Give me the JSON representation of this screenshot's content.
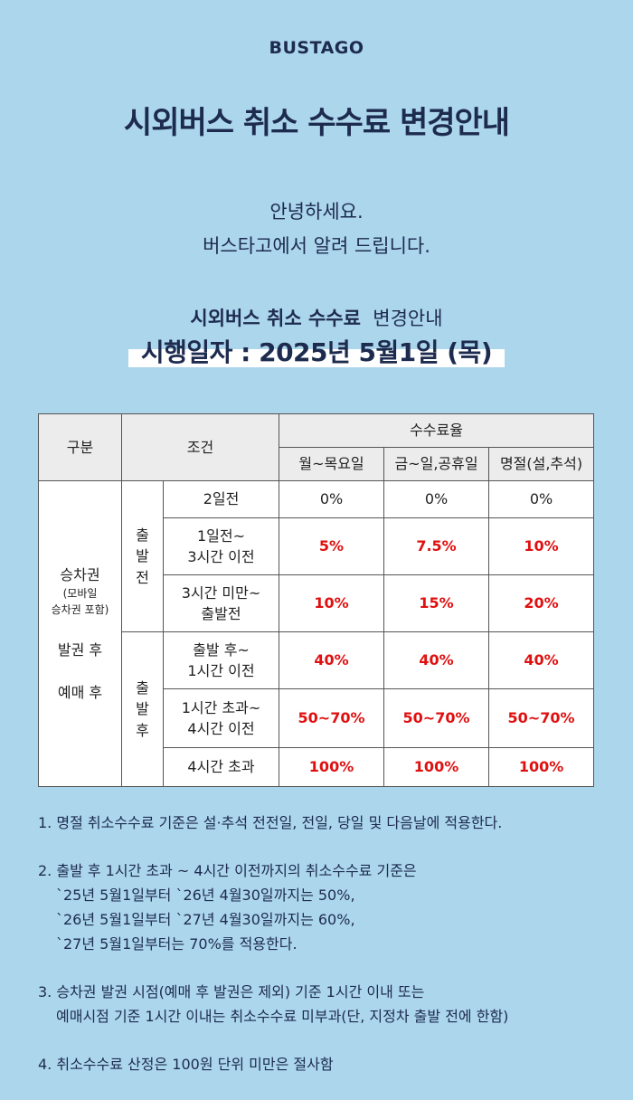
{
  "brand": "BUSTAGO",
  "title": "시외버스 취소 수수료 변경안내",
  "greeting": [
    "안녕하세요.",
    "버스타고에서 알려 드립니다."
  ],
  "subtitle_bold": "시외버스 취소 수수료",
  "subtitle_rest": "변경안내",
  "effective_date": "시행일자 : 2025년 5월1일 (목)",
  "table": {
    "col_category": "구분",
    "col_condition": "조건",
    "col_rate": "수수료율",
    "col_weekday": "월~목요일",
    "col_weekend": "금~일,공휴일",
    "col_holiday": "명절(설,추석)",
    "category_line1": "승차권",
    "category_line2": "(모바일",
    "category_line3": "승차권 포함)",
    "category_line4": "발권 후",
    "category_line5": "예매 후",
    "before_dep": [
      "출",
      "발",
      "전"
    ],
    "after_dep": [
      "출",
      "발",
      "후"
    ],
    "rows": [
      {
        "cond1": "2일전",
        "cond2": "",
        "weekday": "0%",
        "weekend": "0%",
        "holiday": "0%"
      },
      {
        "cond1": "1일전~",
        "cond2": "3시간 이전",
        "weekday": "5%",
        "weekend": "7.5%",
        "holiday": "10%"
      },
      {
        "cond1": "3시간 미만~",
        "cond2": "출발전",
        "weekday": "10%",
        "weekend": "15%",
        "holiday": "20%"
      },
      {
        "cond1": "출발 후~",
        "cond2": "1시간 이전",
        "weekday": "40%",
        "weekend": "40%",
        "holiday": "40%"
      },
      {
        "cond1": "1시간 초과~",
        "cond2": "4시간 이전",
        "weekday": "50~70%",
        "weekend": "50~70%",
        "holiday": "50~70%"
      },
      {
        "cond1": "4시간 초과",
        "cond2": "",
        "weekday": "100%",
        "weekend": "100%",
        "holiday": "100%"
      }
    ]
  },
  "notes": {
    "n1": "1. 명절 취소수수료 기준은 설·추석 전전일, 전일, 당일 및 다음날에 적용한다.",
    "n2_1": "2. 출발 후 1시간 초과 ~ 4시간 이전까지의 취소수수료 기준은",
    "n2_2": "`25년 5월1일부터 `26년 4월30일까지는 50%,",
    "n2_3": "`26년 5월1일부터 `27년 4월30일까지는 60%,",
    "n2_4": "`27년 5월1일부터는 70%를 적용한다.",
    "n3_1": "3. 승차권 발권 시점(예매 후 발권은 제외) 기준 1시간 이내 또는",
    "n3_2": "예매시점 기준 1시간 이내는 취소수수료 미부과(단, 지정차 출발 전에 한함)",
    "n4": "4. 취소수수료 산정은 100원 단위 미만은 절사함"
  }
}
